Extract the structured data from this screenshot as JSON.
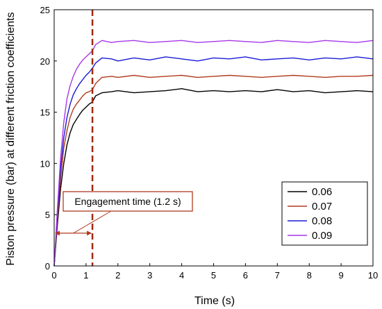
{
  "chart_data": {
    "type": "line",
    "title": "",
    "xlabel": "Time (s)",
    "ylabel": "Piston pressure (bar) at different friction coefficients",
    "xlim": [
      0,
      10
    ],
    "ylim": [
      0,
      25
    ],
    "x_ticks": [
      "0",
      "1",
      "2",
      "3",
      "4",
      "5",
      "6",
      "7",
      "8",
      "9",
      "10"
    ],
    "y_ticks": [
      "0",
      "5",
      "10",
      "15",
      "20",
      "25"
    ],
    "grid": false,
    "legend_position": "bottom-right",
    "series": [
      {
        "name": "0.06",
        "color": "#000000",
        "x": [
          0,
          0.1,
          0.2,
          0.3,
          0.4,
          0.5,
          0.6,
          0.7,
          0.8,
          0.9,
          1.0,
          1.1,
          1.2,
          1.3,
          1.5,
          1.8,
          2.0,
          2.5,
          3.0,
          3.5,
          4.0,
          4.5,
          5.0,
          5.5,
          6.0,
          6.5,
          7.0,
          7.5,
          8.0,
          8.5,
          9.0,
          9.5,
          10.0
        ],
        "y": [
          0,
          4.0,
          7.5,
          10.0,
          11.8,
          13.0,
          13.8,
          14.3,
          14.8,
          15.2,
          15.5,
          15.8,
          16.0,
          16.6,
          16.9,
          17.0,
          17.1,
          16.9,
          17.0,
          17.1,
          17.3,
          17.0,
          17.1,
          17.0,
          17.1,
          17.0,
          17.2,
          17.0,
          17.1,
          16.9,
          17.0,
          17.1,
          17.0
        ]
      },
      {
        "name": "0.07",
        "color": "#b03a1e",
        "x": [
          0,
          0.1,
          0.2,
          0.3,
          0.4,
          0.5,
          0.6,
          0.7,
          0.8,
          0.9,
          1.0,
          1.1,
          1.2,
          1.3,
          1.5,
          1.8,
          2.0,
          2.5,
          3.0,
          3.5,
          4.0,
          4.5,
          5.0,
          5.5,
          6.0,
          6.5,
          7.0,
          7.5,
          8.0,
          8.5,
          9.0,
          9.5,
          10.0
        ],
        "y": [
          0,
          4.5,
          8.5,
          11.5,
          13.2,
          14.5,
          15.3,
          15.8,
          16.2,
          16.6,
          16.9,
          17.0,
          17.2,
          17.8,
          18.4,
          18.5,
          18.4,
          18.6,
          18.4,
          18.5,
          18.6,
          18.4,
          18.5,
          18.6,
          18.5,
          18.4,
          18.5,
          18.6,
          18.5,
          18.4,
          18.5,
          18.5,
          18.6
        ]
      },
      {
        "name": "0.08",
        "color": "#1a1ad6",
        "x": [
          0,
          0.1,
          0.2,
          0.3,
          0.4,
          0.5,
          0.6,
          0.7,
          0.8,
          0.9,
          1.0,
          1.1,
          1.2,
          1.3,
          1.5,
          1.8,
          2.0,
          2.5,
          3.0,
          3.5,
          4.0,
          4.5,
          5.0,
          5.5,
          6.0,
          6.5,
          7.0,
          7.5,
          8.0,
          8.5,
          9.0,
          9.5,
          10.0
        ],
        "y": [
          0,
          5.0,
          9.5,
          12.5,
          14.5,
          15.8,
          16.7,
          17.3,
          17.8,
          18.2,
          18.6,
          18.9,
          19.3,
          19.8,
          20.3,
          20.2,
          20.0,
          20.3,
          20.1,
          20.4,
          20.2,
          20.0,
          20.3,
          20.2,
          20.4,
          20.1,
          20.2,
          20.3,
          20.1,
          20.3,
          20.2,
          20.4,
          20.2
        ]
      },
      {
        "name": "0.09",
        "color": "#a637e8",
        "x": [
          0,
          0.1,
          0.2,
          0.3,
          0.4,
          0.5,
          0.6,
          0.7,
          0.8,
          0.9,
          1.0,
          1.1,
          1.2,
          1.3,
          1.5,
          1.8,
          2.0,
          2.5,
          3.0,
          3.5,
          4.0,
          4.5,
          5.0,
          5.5,
          6.0,
          6.5,
          7.0,
          7.5,
          8.0,
          8.5,
          9.0,
          9.5,
          10.0
        ],
        "y": [
          0,
          5.5,
          10.5,
          14.0,
          16.3,
          17.6,
          18.5,
          19.2,
          19.7,
          20.1,
          20.4,
          20.7,
          21.0,
          21.6,
          22.0,
          21.8,
          21.9,
          22.0,
          21.8,
          21.9,
          22.0,
          21.8,
          21.9,
          22.0,
          21.9,
          21.8,
          22.0,
          21.9,
          21.8,
          22.0,
          21.9,
          21.8,
          22.0
        ]
      }
    ],
    "annotations": {
      "engagement_time": 1.2,
      "engagement_label": "Engagement time (1.2 s)",
      "marker_pressure": 3.2,
      "vline_color": "#9c2a10",
      "box_color": "#b03a1e"
    }
  }
}
